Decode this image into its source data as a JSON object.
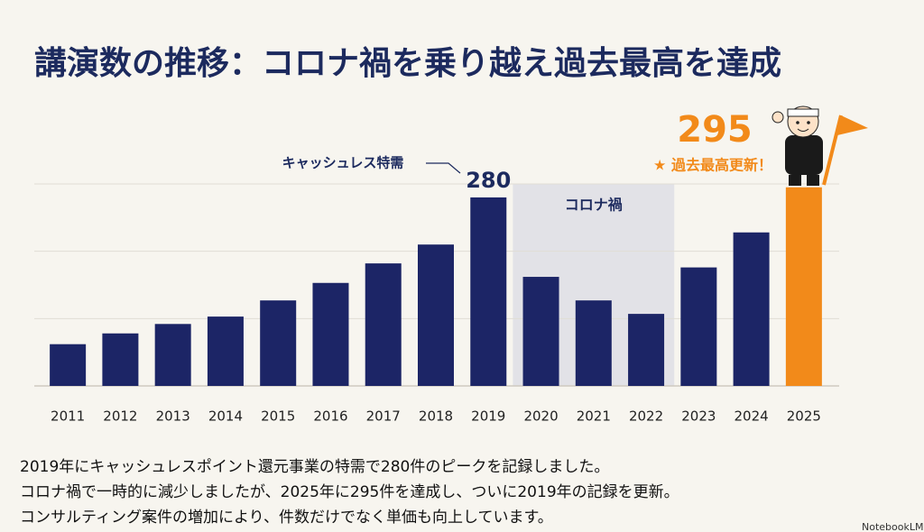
{
  "chart_data": {
    "type": "bar",
    "title": "講演数の推移：コロナ禍を乗り越え過去最高を達成",
    "categories": [
      "2011",
      "2012",
      "2013",
      "2014",
      "2015",
      "2016",
      "2017",
      "2018",
      "2019",
      "2020",
      "2021",
      "2022",
      "2023",
      "2024",
      "2025"
    ],
    "values": [
      62,
      78,
      92,
      103,
      127,
      153,
      182,
      210,
      280,
      162,
      127,
      107,
      176,
      228,
      295
    ],
    "bar_colors": [
      "#1c2566",
      "#1c2566",
      "#1c2566",
      "#1c2566",
      "#1c2566",
      "#1c2566",
      "#1c2566",
      "#1c2566",
      "#1c2566",
      "#1c2566",
      "#1c2566",
      "#1c2566",
      "#1c2566",
      "#1c2566",
      "#f28a1a"
    ],
    "ylim": [
      0,
      300
    ],
    "yticks": [
      100,
      200,
      300
    ],
    "grid": true,
    "shaded_region": {
      "label": "コロナ禍",
      "from": "2020",
      "to": "2022",
      "color": "#e2e2e7"
    },
    "annotations": {
      "cashless": "キャッシュレス特需",
      "record": "★ 過去最高更新！"
    },
    "description": [
      "2019年にキャッシュレスポイント還元事業の特需で280件のピークを記録しました。",
      "コロナ禍で一時的に減少しましたが、2025年に295件を達成し、ついに2019年の記録を更新。",
      "コンサルティング案件の増加により、件数だけでなく単価も向上しています。"
    ],
    "watermark": "NotebookLM"
  }
}
